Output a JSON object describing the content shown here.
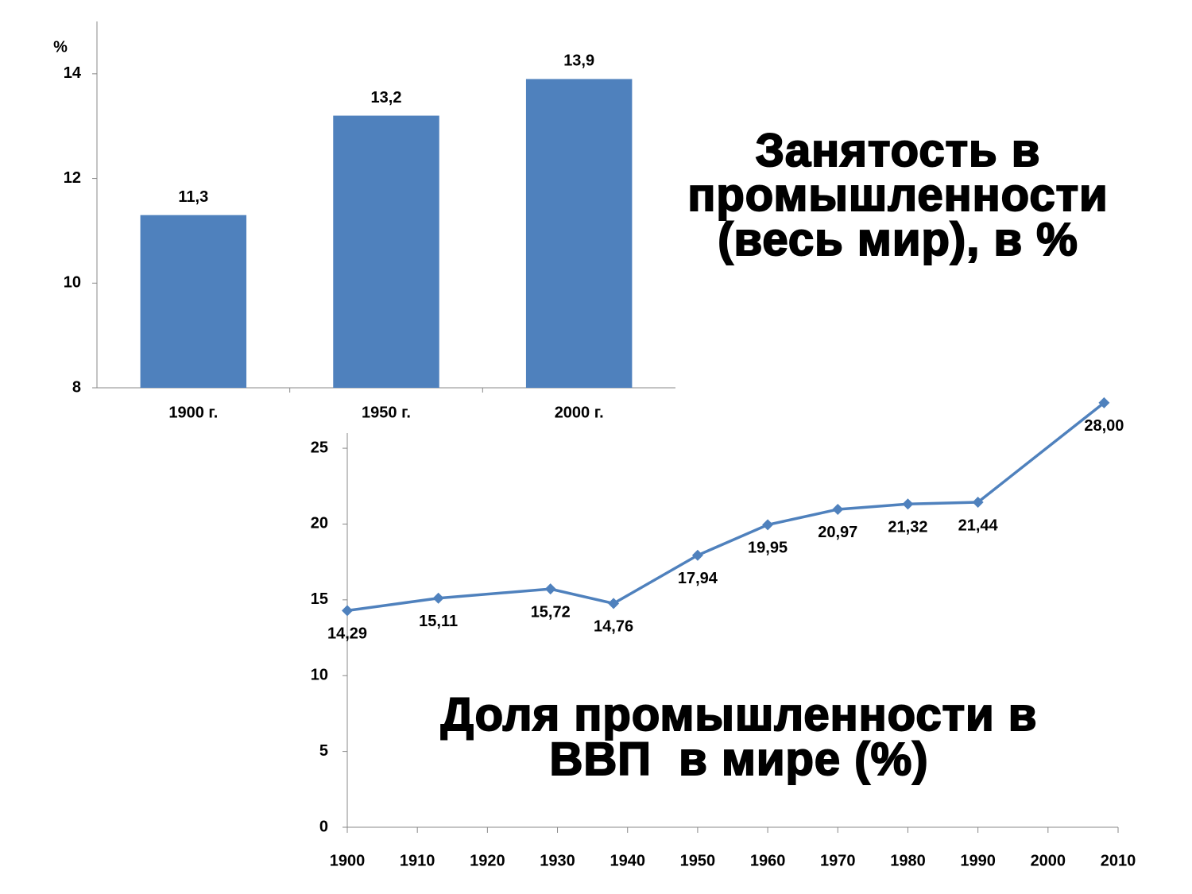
{
  "chart_data": [
    {
      "type": "bar",
      "title": "Занятость в промышленности (весь мир), в %",
      "y_label": "%",
      "categories": [
        "1900 г.",
        "1950 г.",
        "2000 г."
      ],
      "values": [
        11.3,
        13.2,
        13.9
      ],
      "value_labels": [
        "11,3",
        "13,2",
        "13,9"
      ],
      "color": "#4f81bd",
      "ylim": [
        8,
        15
      ],
      "yticks": [
        8,
        10,
        12,
        14
      ]
    },
    {
      "type": "line",
      "title": "Доля промышленности в ВВП  в мире (%)",
      "x": [
        1900,
        1913,
        1929,
        1938,
        1950,
        1960,
        1970,
        1980,
        1990,
        2008
      ],
      "values": [
        14.29,
        15.11,
        15.72,
        14.76,
        17.94,
        19.95,
        20.97,
        21.32,
        21.44,
        28.0
      ],
      "value_labels": [
        "14,29",
        "15,11",
        "15,72",
        "14,76",
        "17,94",
        "19,95",
        "20,97",
        "21,32",
        "21,44",
        "28,00"
      ],
      "color": "#4f81bd",
      "xlim": [
        1900,
        2010
      ],
      "xticks": [
        1900,
        1910,
        1920,
        1930,
        1940,
        1950,
        1960,
        1970,
        1980,
        1990,
        2000,
        2010
      ],
      "ylim": [
        0,
        26
      ],
      "yticks": [
        0,
        5,
        10,
        15,
        20,
        25
      ]
    }
  ]
}
